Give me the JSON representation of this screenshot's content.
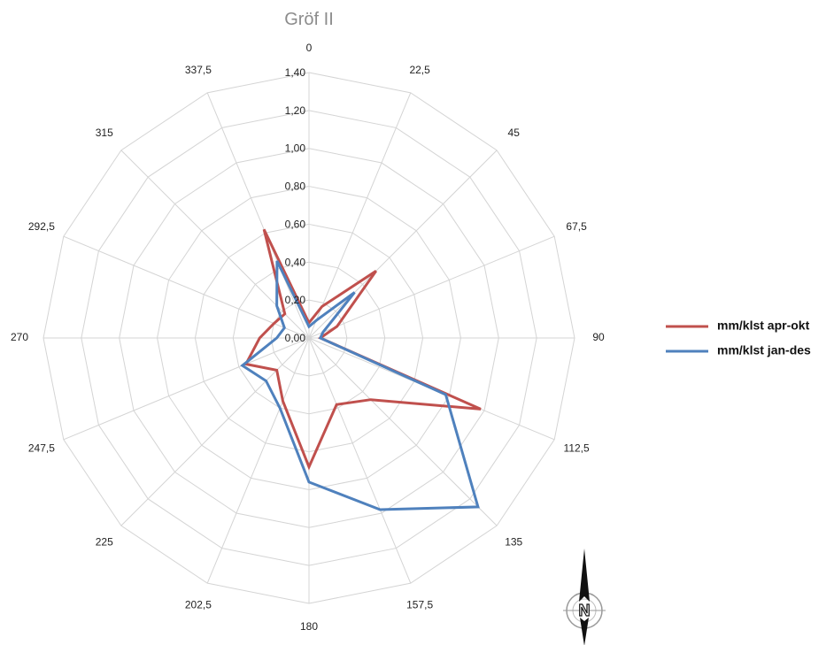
{
  "chart_data": {
    "type": "radar",
    "title": "Gröf II",
    "categories": [
      "0",
      "22,5",
      "45",
      "67,5",
      "90",
      "112,5",
      "135",
      "157,5",
      "180",
      "202,5",
      "225",
      "247,5",
      "270",
      "292,5",
      "315",
      "337,5"
    ],
    "radial_ticks": [
      "0,00",
      "0,20",
      "0,40",
      "0,60",
      "0,80",
      "1,00",
      "1,20",
      "1,40"
    ],
    "rlim": [
      0,
      1.4
    ],
    "grid": true,
    "legend_position": "right",
    "series": [
      {
        "name": "mm/klst apr-okt",
        "color": "#c0504d",
        "values": [
          0.08,
          0.18,
          0.5,
          0.16,
          0.06,
          0.98,
          0.46,
          0.38,
          0.68,
          0.36,
          0.24,
          0.36,
          0.26,
          0.2,
          0.18,
          0.62
        ]
      },
      {
        "name": "mm/klst jan-des",
        "color": "#4f81bd",
        "values": [
          0.06,
          0.1,
          0.34,
          0.08,
          0.06,
          0.78,
          1.26,
          0.98,
          0.76,
          0.4,
          0.32,
          0.38,
          0.17,
          0.14,
          0.24,
          0.44
        ]
      }
    ]
  },
  "compass": {
    "letter": "N",
    "icon": "north-arrow-icon"
  }
}
